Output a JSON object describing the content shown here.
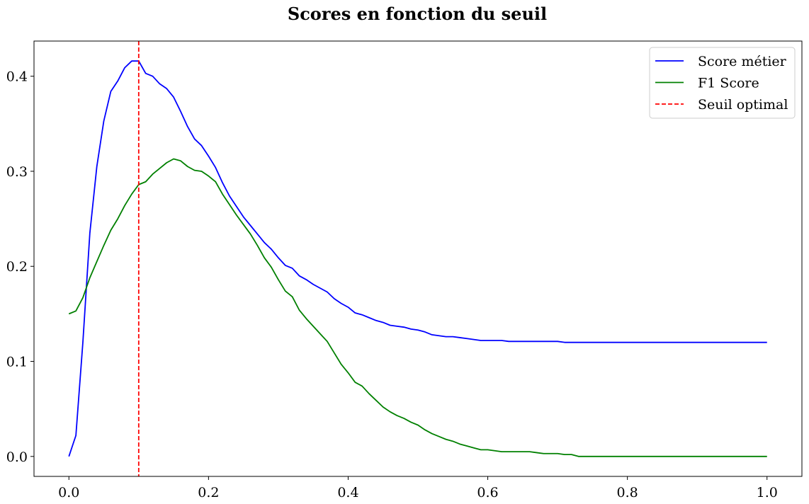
{
  "chart_data": {
    "type": "line",
    "title": "Scores en fonction du seuil",
    "xlabel": "",
    "ylabel": "",
    "xlim": [
      -0.05,
      1.05
    ],
    "ylim": [
      -0.021,
      0.437
    ],
    "xticks": [
      0.0,
      0.2,
      0.4,
      0.6,
      0.8,
      1.0
    ],
    "xtick_labels": [
      "0.0",
      "0.2",
      "0.4",
      "0.6",
      "0.8",
      "1.0"
    ],
    "yticks": [
      0.0,
      0.1,
      0.2,
      0.3,
      0.4
    ],
    "ytick_labels": [
      "0.0",
      "0.1",
      "0.2",
      "0.3",
      "0.4"
    ],
    "grid": false,
    "legend_position": "top-right",
    "series": [
      {
        "name": "Score métier",
        "color": "#0000ff",
        "style": "solid",
        "points": [
          [
            0.0,
            0.0
          ],
          [
            0.01,
            0.022
          ],
          [
            0.02,
            0.12
          ],
          [
            0.03,
            0.235
          ],
          [
            0.04,
            0.305
          ],
          [
            0.05,
            0.353
          ],
          [
            0.06,
            0.384
          ],
          [
            0.07,
            0.395
          ],
          [
            0.08,
            0.409
          ],
          [
            0.09,
            0.416
          ],
          [
            0.1,
            0.416
          ],
          [
            0.11,
            0.403
          ],
          [
            0.12,
            0.4
          ],
          [
            0.13,
            0.392
          ],
          [
            0.14,
            0.387
          ],
          [
            0.15,
            0.378
          ],
          [
            0.16,
            0.363
          ],
          [
            0.17,
            0.347
          ],
          [
            0.18,
            0.334
          ],
          [
            0.19,
            0.327
          ],
          [
            0.2,
            0.316
          ],
          [
            0.21,
            0.304
          ],
          [
            0.22,
            0.288
          ],
          [
            0.23,
            0.274
          ],
          [
            0.24,
            0.263
          ],
          [
            0.25,
            0.252
          ],
          [
            0.26,
            0.243
          ],
          [
            0.27,
            0.234
          ],
          [
            0.28,
            0.225
          ],
          [
            0.29,
            0.218
          ],
          [
            0.3,
            0.209
          ],
          [
            0.31,
            0.201
          ],
          [
            0.32,
            0.198
          ],
          [
            0.33,
            0.19
          ],
          [
            0.34,
            0.186
          ],
          [
            0.35,
            0.181
          ],
          [
            0.36,
            0.177
          ],
          [
            0.37,
            0.173
          ],
          [
            0.38,
            0.166
          ],
          [
            0.39,
            0.161
          ],
          [
            0.4,
            0.157
          ],
          [
            0.41,
            0.151
          ],
          [
            0.42,
            0.149
          ],
          [
            0.43,
            0.146
          ],
          [
            0.44,
            0.143
          ],
          [
            0.45,
            0.141
          ],
          [
            0.46,
            0.138
          ],
          [
            0.47,
            0.137
          ],
          [
            0.48,
            0.136
          ],
          [
            0.49,
            0.134
          ],
          [
            0.5,
            0.133
          ],
          [
            0.51,
            0.131
          ],
          [
            0.52,
            0.128
          ],
          [
            0.53,
            0.127
          ],
          [
            0.54,
            0.126
          ],
          [
            0.55,
            0.126
          ],
          [
            0.56,
            0.125
          ],
          [
            0.57,
            0.124
          ],
          [
            0.58,
            0.123
          ],
          [
            0.59,
            0.122
          ],
          [
            0.6,
            0.122
          ],
          [
            0.61,
            0.122
          ],
          [
            0.62,
            0.122
          ],
          [
            0.63,
            0.121
          ],
          [
            0.64,
            0.121
          ],
          [
            0.65,
            0.121
          ],
          [
            0.66,
            0.121
          ],
          [
            0.67,
            0.121
          ],
          [
            0.68,
            0.121
          ],
          [
            0.69,
            0.121
          ],
          [
            0.7,
            0.121
          ],
          [
            0.71,
            0.12
          ],
          [
            0.72,
            0.12
          ],
          [
            0.8,
            0.12
          ],
          [
            0.9,
            0.12
          ],
          [
            1.0,
            0.12
          ]
        ]
      },
      {
        "name": "F1 Score",
        "color": "#008000",
        "style": "solid",
        "points": [
          [
            0.0,
            0.15
          ],
          [
            0.01,
            0.153
          ],
          [
            0.02,
            0.167
          ],
          [
            0.03,
            0.188
          ],
          [
            0.04,
            0.205
          ],
          [
            0.05,
            0.222
          ],
          [
            0.06,
            0.238
          ],
          [
            0.07,
            0.25
          ],
          [
            0.08,
            0.264
          ],
          [
            0.09,
            0.276
          ],
          [
            0.1,
            0.286
          ],
          [
            0.11,
            0.289
          ],
          [
            0.12,
            0.297
          ],
          [
            0.13,
            0.303
          ],
          [
            0.14,
            0.309
          ],
          [
            0.15,
            0.313
          ],
          [
            0.16,
            0.311
          ],
          [
            0.17,
            0.305
          ],
          [
            0.18,
            0.301
          ],
          [
            0.19,
            0.3
          ],
          [
            0.2,
            0.295
          ],
          [
            0.21,
            0.289
          ],
          [
            0.22,
            0.276
          ],
          [
            0.23,
            0.265
          ],
          [
            0.24,
            0.254
          ],
          [
            0.25,
            0.244
          ],
          [
            0.26,
            0.234
          ],
          [
            0.27,
            0.222
          ],
          [
            0.28,
            0.209
          ],
          [
            0.29,
            0.199
          ],
          [
            0.3,
            0.186
          ],
          [
            0.31,
            0.174
          ],
          [
            0.32,
            0.168
          ],
          [
            0.33,
            0.154
          ],
          [
            0.34,
            0.145
          ],
          [
            0.35,
            0.137
          ],
          [
            0.36,
            0.129
          ],
          [
            0.37,
            0.121
          ],
          [
            0.38,
            0.109
          ],
          [
            0.39,
            0.097
          ],
          [
            0.4,
            0.088
          ],
          [
            0.41,
            0.078
          ],
          [
            0.42,
            0.074
          ],
          [
            0.43,
            0.066
          ],
          [
            0.44,
            0.059
          ],
          [
            0.45,
            0.052
          ],
          [
            0.46,
            0.047
          ],
          [
            0.47,
            0.043
          ],
          [
            0.48,
            0.04
          ],
          [
            0.49,
            0.036
          ],
          [
            0.5,
            0.033
          ],
          [
            0.51,
            0.028
          ],
          [
            0.52,
            0.024
          ],
          [
            0.53,
            0.021
          ],
          [
            0.54,
            0.018
          ],
          [
            0.55,
            0.016
          ],
          [
            0.56,
            0.013
          ],
          [
            0.57,
            0.011
          ],
          [
            0.58,
            0.009
          ],
          [
            0.59,
            0.007
          ],
          [
            0.6,
            0.007
          ],
          [
            0.61,
            0.006
          ],
          [
            0.62,
            0.005
          ],
          [
            0.63,
            0.005
          ],
          [
            0.64,
            0.005
          ],
          [
            0.65,
            0.005
          ],
          [
            0.66,
            0.005
          ],
          [
            0.67,
            0.004
          ],
          [
            0.68,
            0.003
          ],
          [
            0.69,
            0.003
          ],
          [
            0.7,
            0.003
          ],
          [
            0.71,
            0.002
          ],
          [
            0.72,
            0.002
          ],
          [
            0.73,
            0.0
          ],
          [
            0.8,
            0.0
          ],
          [
            0.9,
            0.0
          ],
          [
            1.0,
            0.0
          ]
        ]
      },
      {
        "name": "Seuil optimal",
        "color": "#ff0000",
        "style": "dashed",
        "type": "vline",
        "x": 0.1
      }
    ]
  }
}
